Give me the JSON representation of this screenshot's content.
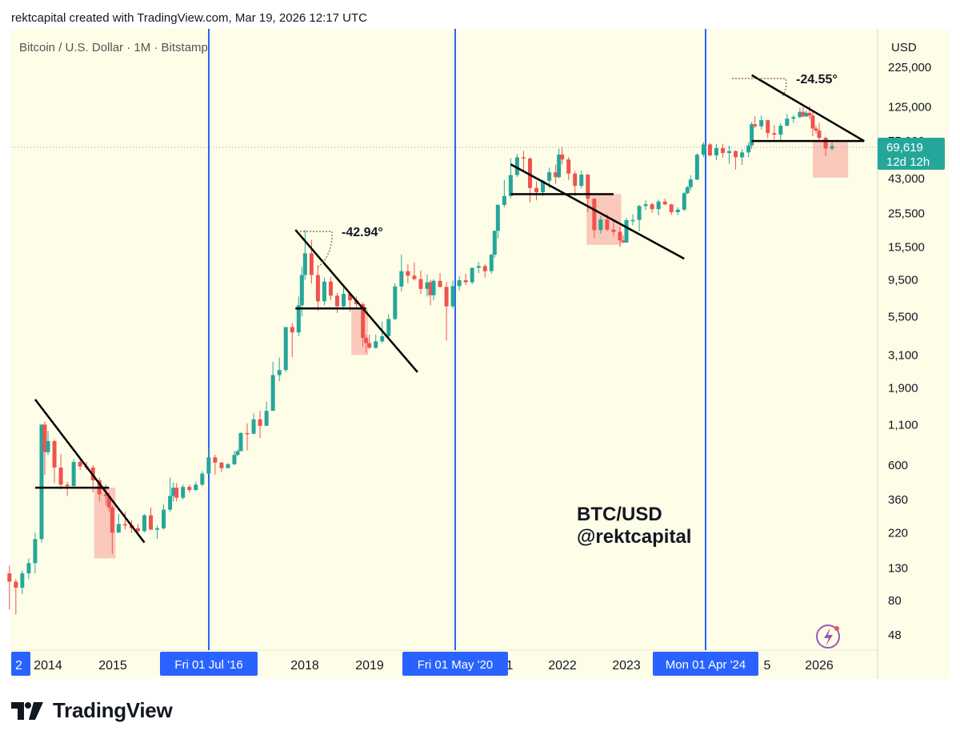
{
  "header": {
    "text": "rektcapital created with TradingView.com, Mar 19, 2026 12:17 UTC"
  },
  "logo": {
    "text": "TradingView"
  },
  "colors": {
    "background": "#fefde8",
    "up": "#26a69a",
    "down": "#ef5350",
    "highlight_box": "#f9c0b4",
    "halving_line": "#2962ff",
    "trendline": "#000000",
    "price_badge": "#26a69a"
  },
  "chart_data": {
    "type": "candlestick",
    "title": "Bitcoin / U.S. Dollar · 1M · Bitstamp",
    "currency": "USD",
    "y_scale": "log",
    "yticks": [
      "225,000",
      "125,000",
      "75,000",
      "43,000",
      "25,500",
      "15,500",
      "9,500",
      "5,500",
      "3,100",
      "1,900",
      "1,100",
      "600",
      "360",
      "220",
      "130",
      "80",
      "48"
    ],
    "xticks": [
      "2",
      "2014",
      "2015",
      "2018",
      "2019",
      "1",
      "2022",
      "2023",
      "5",
      "2026"
    ],
    "halving_labels": [
      "Fri 01 Jul '16",
      "Fri 01 May '20",
      "Mon 01 Apr '24"
    ],
    "current_price": {
      "value": "69,619",
      "countdown": "12d 12h"
    },
    "annotations": {
      "angle_2017": "-42.94°",
      "angle_2025": "-24.55°",
      "watermark_pair": "BTC/USD",
      "watermark_handle": "@rektcapital"
    },
    "candles": [
      [
        2013.4,
        120,
        135,
        70,
        106
      ],
      [
        2013.5,
        106,
        110,
        65,
        97
      ],
      [
        2013.6,
        97,
        125,
        88,
        120
      ],
      [
        2013.7,
        120,
        150,
        110,
        140
      ],
      [
        2013.8,
        140,
        220,
        120,
        200
      ],
      [
        2013.9,
        200,
        1100,
        190,
        1100
      ],
      [
        2013.95,
        1100,
        1150,
        520,
        730
      ],
      [
        2014.0,
        730,
        1000,
        700,
        860
      ],
      [
        2014.1,
        860,
        880,
        460,
        580
      ],
      [
        2014.2,
        580,
        710,
        420,
        450
      ],
      [
        2014.3,
        450,
        470,
        380,
        440
      ],
      [
        2014.4,
        440,
        660,
        440,
        630
      ],
      [
        2014.5,
        630,
        660,
        560,
        590
      ],
      [
        2014.6,
        590,
        630,
        560,
        580
      ],
      [
        2014.7,
        580,
        600,
        400,
        480
      ],
      [
        2014.8,
        480,
        500,
        350,
        390
      ],
      [
        2014.9,
        390,
        450,
        330,
        380
      ],
      [
        2014.95,
        380,
        400,
        300,
        320
      ],
      [
        2015.0,
        320,
        330,
        160,
        220
      ],
      [
        2015.1,
        220,
        290,
        220,
        250
      ],
      [
        2015.2,
        250,
        300,
        230,
        245
      ],
      [
        2015.3,
        245,
        265,
        220,
        235
      ],
      [
        2015.4,
        235,
        250,
        220,
        225
      ],
      [
        2015.5,
        225,
        290,
        220,
        285
      ],
      [
        2015.6,
        285,
        320,
        260,
        230
      ],
      [
        2015.7,
        230,
        245,
        200,
        235
      ],
      [
        2015.8,
        235,
        335,
        230,
        310
      ],
      [
        2015.9,
        310,
        500,
        300,
        380
      ],
      [
        2015.95,
        380,
        465,
        350,
        430
      ],
      [
        2016.0,
        430,
        460,
        350,
        370
      ],
      [
        2016.1,
        370,
        450,
        360,
        435
      ],
      [
        2016.2,
        435,
        450,
        400,
        415
      ],
      [
        2016.3,
        415,
        470,
        410,
        450
      ],
      [
        2016.4,
        450,
        550,
        440,
        530
      ],
      [
        2016.5,
        530,
        780,
        520,
        675
      ],
      [
        2016.6,
        675,
        700,
        520,
        625
      ],
      [
        2016.7,
        625,
        630,
        540,
        575
      ],
      [
        2016.8,
        575,
        620,
        590,
        610
      ],
      [
        2016.9,
        610,
        740,
        600,
        700
      ],
      [
        2016.95,
        700,
        760,
        690,
        740
      ],
      [
        2017.0,
        740,
        980,
        740,
        970
      ],
      [
        2017.1,
        970,
        1120,
        750,
        960
      ],
      [
        2017.2,
        960,
        1300,
        950,
        1190
      ],
      [
        2017.3,
        1190,
        1350,
        900,
        1080
      ],
      [
        2017.4,
        1080,
        1550,
        1080,
        1350
      ],
      [
        2017.5,
        1350,
        2800,
        1350,
        2300
      ],
      [
        2017.6,
        2300,
        2980,
        2100,
        2480
      ],
      [
        2017.7,
        2480,
        4400,
        2400,
        4700
      ],
      [
        2017.8,
        4700,
        5000,
        3000,
        4340
      ],
      [
        2017.9,
        4340,
        7400,
        4100,
        6500
      ],
      [
        2017.95,
        6500,
        11500,
        5500,
        10200
      ],
      [
        2018.0,
        10200,
        20000,
        9500,
        14100
      ],
      [
        2018.1,
        14100,
        17200,
        9000,
        10200
      ],
      [
        2018.2,
        10200,
        11800,
        6000,
        6900
      ],
      [
        2018.3,
        6900,
        9800,
        6500,
        9250
      ],
      [
        2018.4,
        9250,
        9900,
        7000,
        7500
      ],
      [
        2018.5,
        7500,
        7800,
        5800,
        6400
      ],
      [
        2018.6,
        6400,
        8500,
        6100,
        7700
      ],
      [
        2018.7,
        7700,
        7900,
        5900,
        7000
      ],
      [
        2018.8,
        7000,
        7400,
        6300,
        6600
      ],
      [
        2018.9,
        6600,
        6800,
        3500,
        4000
      ],
      [
        2018.95,
        4000,
        4200,
        3200,
        3700
      ],
      [
        2019.0,
        3700,
        4200,
        3400,
        3450
      ],
      [
        2019.1,
        3450,
        4200,
        3400,
        3800
      ],
      [
        2019.2,
        3800,
        5100,
        3700,
        4100
      ],
      [
        2019.3,
        4100,
        5700,
        4000,
        5300
      ],
      [
        2019.4,
        5300,
        9000,
        5200,
        8600
      ],
      [
        2019.5,
        8600,
        13800,
        8000,
        10800
      ],
      [
        2019.6,
        10800,
        12000,
        9000,
        10100
      ],
      [
        2019.7,
        10100,
        12300,
        9400,
        9600
      ],
      [
        2019.8,
        9600,
        10900,
        7700,
        8300
      ],
      [
        2019.9,
        8300,
        10300,
        7400,
        9150
      ],
      [
        2019.95,
        9150,
        9500,
        6500,
        7550
      ],
      [
        2020.0,
        7550,
        9600,
        7000,
        9350
      ],
      [
        2020.1,
        9350,
        10500,
        8500,
        8550
      ],
      [
        2020.2,
        8550,
        9200,
        3850,
        6400
      ],
      [
        2020.3,
        6400,
        9400,
        6200,
        8650
      ],
      [
        2020.4,
        8650,
        10000,
        8100,
        9450
      ],
      [
        2020.5,
        9450,
        10400,
        8800,
        9150
      ],
      [
        2020.6,
        9150,
        11400,
        8900,
        11350
      ],
      [
        2020.7,
        11350,
        12400,
        10500,
        11650
      ],
      [
        2020.8,
        11650,
        12000,
        9800,
        10800
      ],
      [
        2020.9,
        10800,
        14000,
        10400,
        13800
      ],
      [
        2020.95,
        13800,
        19800,
        13200,
        19700
      ],
      [
        2021.0,
        19700,
        29300,
        17600,
        29000
      ],
      [
        2021.1,
        29000,
        41900,
        28000,
        33100
      ],
      [
        2021.2,
        33100,
        58000,
        32000,
        45200
      ],
      [
        2021.3,
        45200,
        61800,
        44000,
        58800
      ],
      [
        2021.4,
        58800,
        64800,
        47000,
        57800
      ],
      [
        2021.5,
        57800,
        59000,
        30000,
        37300
      ],
      [
        2021.6,
        37300,
        41300,
        31000,
        35000
      ],
      [
        2021.7,
        35000,
        42000,
        33000,
        41500
      ],
      [
        2021.8,
        41500,
        50500,
        37000,
        47100
      ],
      [
        2021.9,
        47100,
        52900,
        39600,
        43800
      ],
      [
        2021.95,
        43800,
        67000,
        43000,
        61300
      ],
      [
        2022.0,
        61300,
        69000,
        53000,
        57000
      ],
      [
        2022.1,
        57000,
        59100,
        42000,
        46200
      ],
      [
        2022.2,
        46200,
        48000,
        32900,
        38500
      ],
      [
        2022.3,
        38500,
        48200,
        37000,
        45500
      ],
      [
        2022.4,
        45500,
        46000,
        26000,
        31800
      ],
      [
        2022.5,
        31800,
        32000,
        17600,
        19900
      ],
      [
        2022.6,
        19900,
        24600,
        18900,
        23300
      ],
      [
        2022.7,
        23300,
        25200,
        19500,
        20050
      ],
      [
        2022.8,
        20050,
        22800,
        18150,
        19400
      ],
      [
        2022.9,
        19400,
        21000,
        15500,
        17100
      ],
      [
        2022.95,
        17100,
        18400,
        16400,
        16550
      ],
      [
        2023.0,
        16550,
        23900,
        16500,
        23100
      ],
      [
        2023.1,
        23100,
        25200,
        21400,
        23150
      ],
      [
        2023.2,
        23150,
        29000,
        19600,
        28500
      ],
      [
        2023.3,
        28500,
        31000,
        26900,
        29250
      ],
      [
        2023.4,
        29250,
        30000,
        25800,
        27200
      ],
      [
        2023.5,
        27200,
        31400,
        24800,
        30450
      ],
      [
        2023.6,
        30450,
        31800,
        28900,
        29200
      ],
      [
        2023.7,
        29200,
        29500,
        25000,
        26000
      ],
      [
        2023.8,
        26000,
        28000,
        24900,
        27000
      ],
      [
        2023.9,
        27000,
        35000,
        26500,
        34500
      ],
      [
        2023.95,
        34500,
        38500,
        34000,
        37700
      ],
      [
        2024.0,
        37700,
        45000,
        36000,
        42300
      ],
      [
        2024.1,
        42300,
        62400,
        41800,
        61200
      ],
      [
        2024.2,
        61200,
        73800,
        59000,
        71300
      ],
      [
        2024.3,
        71300,
        72700,
        59600,
        60600
      ],
      [
        2024.4,
        60600,
        71900,
        56500,
        67500
      ],
      [
        2024.5,
        67500,
        72000,
        58600,
        62700
      ],
      [
        2024.6,
        62700,
        70000,
        53500,
        64600
      ],
      [
        2024.7,
        64600,
        65100,
        49000,
        58900
      ],
      [
        2024.8,
        58900,
        66500,
        52500,
        63300
      ],
      [
        2024.9,
        63300,
        73500,
        58900,
        70300
      ],
      [
        2024.95,
        70300,
        99800,
        66800,
        96400
      ],
      [
        2025.0,
        96400,
        108300,
        90700,
        93400
      ],
      [
        2025.1,
        93400,
        109500,
        89200,
        102400
      ],
      [
        2025.2,
        102400,
        102500,
        78200,
        84400
      ],
      [
        2025.3,
        84400,
        95000,
        76600,
        82500
      ],
      [
        2025.4,
        82500,
        97900,
        74500,
        94200
      ],
      [
        2025.5,
        94200,
        111900,
        93500,
        104600
      ],
      [
        2025.6,
        104600,
        110500,
        98200,
        107100
      ],
      [
        2025.7,
        107100,
        123200,
        105300,
        115700
      ],
      [
        2025.75,
        115700,
        124400,
        107300,
        108200
      ],
      [
        2025.8,
        108200,
        118000,
        107400,
        114000
      ],
      [
        2025.85,
        114000,
        126200,
        103500,
        109600
      ],
      [
        2025.9,
        109600,
        116400,
        80600,
        90400
      ],
      [
        2025.95,
        90400,
        94500,
        84000,
        87500
      ],
      [
        2026.0,
        87500,
        97900,
        74500,
        78600
      ],
      [
        2026.1,
        78600,
        80000,
        60000,
        67000
      ],
      [
        2026.2,
        67000,
        74000,
        65000,
        69619
      ]
    ]
  }
}
